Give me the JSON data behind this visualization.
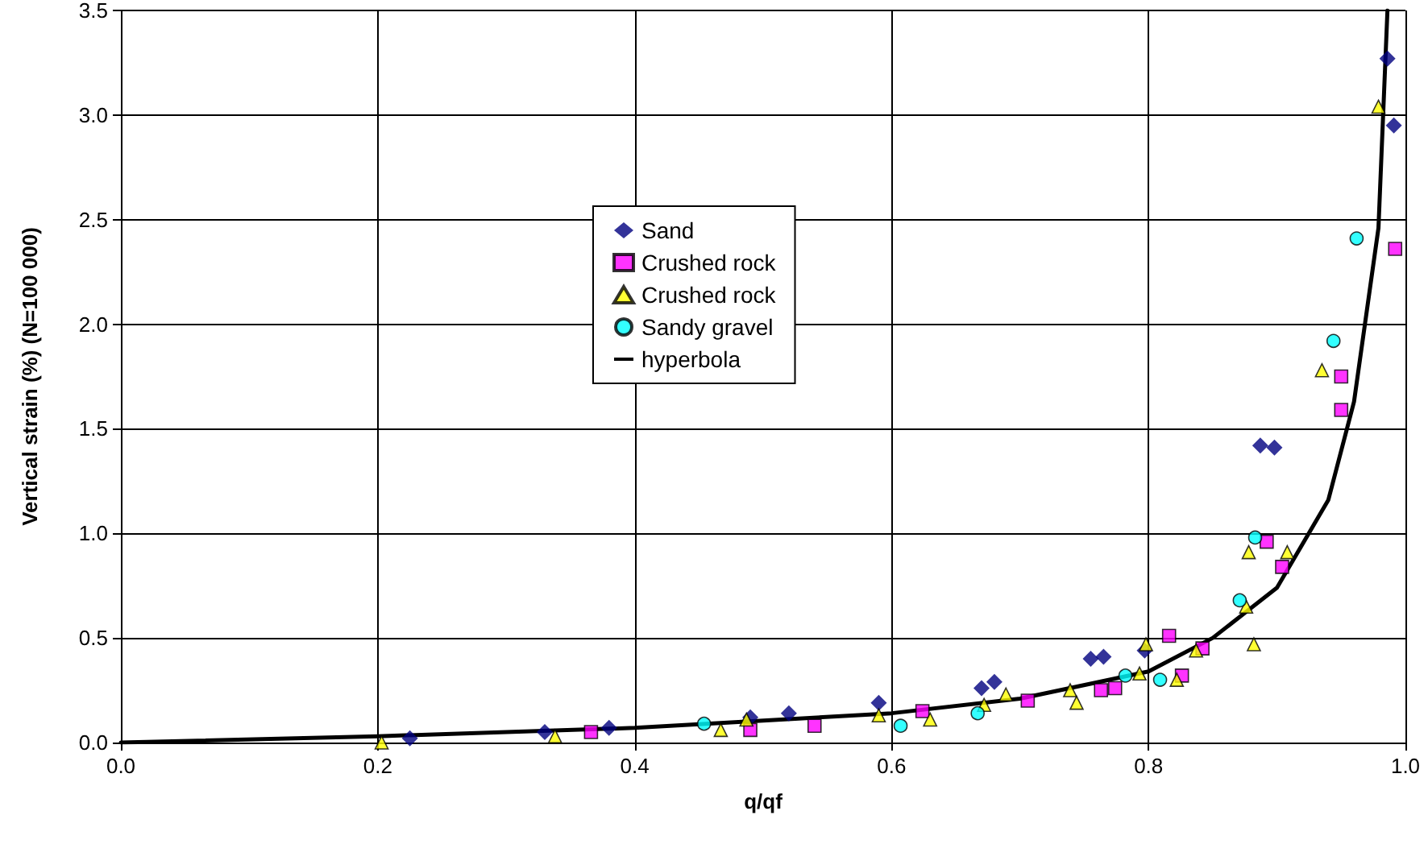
{
  "chart_data": {
    "type": "scatter",
    "xlabel": "q/qf",
    "ylabel": "Vertical strain (%) (N=100 000)",
    "xlim": [
      0,
      1
    ],
    "ylim": [
      0,
      3.5
    ],
    "xticks": [
      {
        "value": 0,
        "label": "0.0"
      },
      0.2,
      0.4,
      0.6,
      0.8,
      {
        "value": 1,
        "label": "1.0"
      }
    ],
    "yticks": [
      {
        "value": 0,
        "label": "0.0"
      },
      0.5,
      {
        "value": 1,
        "label": "1.0"
      },
      1.5,
      {
        "value": 2,
        "label": "2.0"
      },
      2.5,
      {
        "value": 3,
        "label": "3.0"
      },
      3.5
    ],
    "grid": true,
    "legend": "center",
    "series": [
      {
        "name": "Sand",
        "color": "#000080",
        "marker": "diamond",
        "x": [
          0.225,
          0.33,
          0.38,
          0.49,
          0.52,
          0.59,
          0.67,
          0.68,
          0.755,
          0.765,
          0.797,
          0.887,
          0.898,
          0.986,
          0.991
        ],
        "values": [
          0.02,
          0.05,
          0.07,
          0.12,
          0.14,
          0.19,
          0.26,
          0.29,
          0.4,
          0.41,
          0.44,
          1.42,
          1.41,
          3.27,
          2.95
        ]
      },
      {
        "name": "Crushed rock",
        "color": "#ff00ff",
        "marker": "square",
        "x": [
          0.366,
          0.49,
          0.54,
          0.624,
          0.706,
          0.763,
          0.774,
          0.816,
          0.826,
          0.842,
          0.892,
          0.904,
          0.95,
          0.95,
          0.992
        ],
        "values": [
          0.05,
          0.06,
          0.08,
          0.15,
          0.2,
          0.25,
          0.26,
          0.51,
          0.32,
          0.45,
          0.96,
          0.84,
          1.75,
          1.59,
          2.36
        ]
      },
      {
        "name": "Crushed rock",
        "color": "#ffff00",
        "marker": "triangle",
        "x": [
          0.203,
          0.338,
          0.467,
          0.487,
          0.59,
          0.63,
          0.672,
          0.689,
          0.739,
          0.744,
          0.793,
          0.798,
          0.822,
          0.837,
          0.876,
          0.878,
          0.882,
          0.908,
          0.935,
          0.979
        ],
        "values": [
          0.0,
          0.03,
          0.06,
          0.11,
          0.13,
          0.11,
          0.18,
          0.23,
          0.25,
          0.19,
          0.33,
          0.47,
          0.3,
          0.44,
          0.65,
          0.91,
          0.47,
          0.91,
          1.78,
          3.04
        ]
      },
      {
        "name": "Sandy gravel",
        "color": "#00ffff",
        "marker": "circle",
        "x": [
          0.454,
          0.607,
          0.667,
          0.782,
          0.809,
          0.871,
          0.883,
          0.944,
          0.962
        ],
        "values": [
          0.09,
          0.08,
          0.14,
          0.32,
          0.3,
          0.68,
          0.98,
          1.92,
          2.41
        ]
      },
      {
        "name": "hyperbola",
        "type": "line",
        "color": "#000000",
        "marker": "none",
        "line_style": "solid",
        "x": [
          0,
          0.2,
          0.4,
          0.6,
          0.7,
          0.8,
          0.85,
          0.9,
          0.94,
          0.96,
          0.979,
          0.986
        ],
        "values": [
          0,
          0.03,
          0.07,
          0.14,
          0.21,
          0.34,
          0.5,
          0.74,
          1.16,
          1.63,
          2.46,
          3.5
        ]
      }
    ]
  }
}
